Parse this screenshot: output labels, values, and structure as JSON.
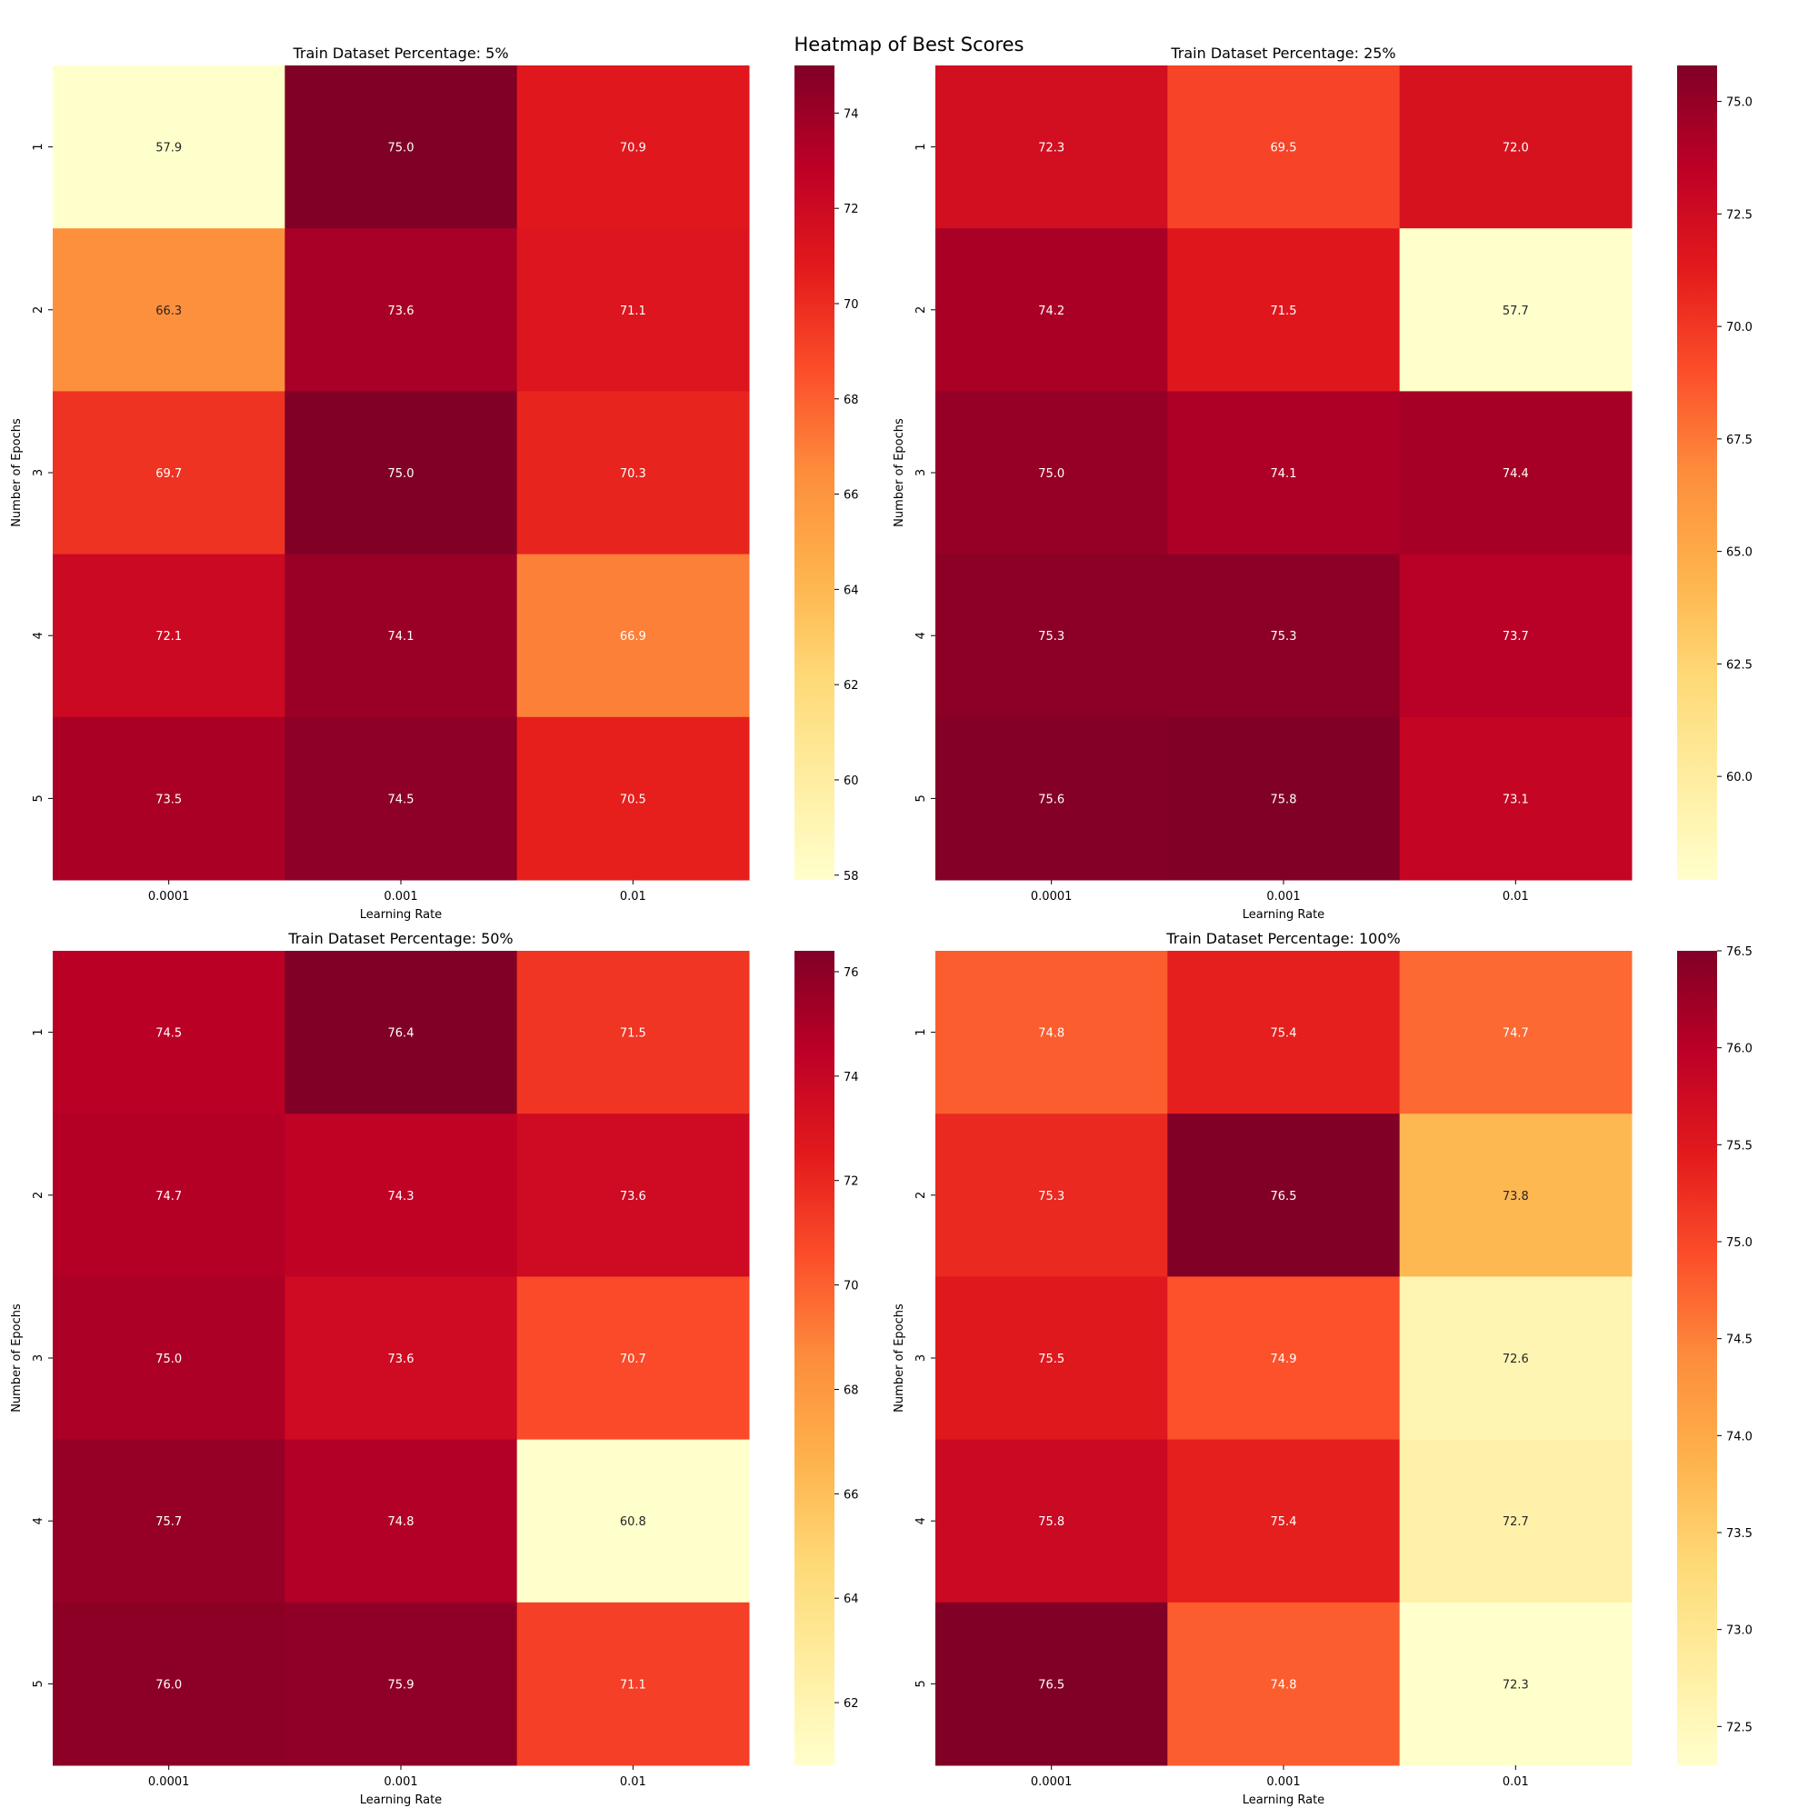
{
  "figure": {
    "title": "Heatmap of Best Scores"
  },
  "chart_data": [
    {
      "type": "heatmap",
      "title": "Train Dataset Percentage: 5%",
      "xlabel": "Learning Rate",
      "ylabel": "Number of Epochs",
      "x": [
        "0.0001",
        "0.001",
        "0.01"
      ],
      "y": [
        "1",
        "2",
        "3",
        "4",
        "5"
      ],
      "values": [
        [
          57.9,
          75.0,
          70.9
        ],
        [
          66.3,
          73.6,
          71.1
        ],
        [
          69.7,
          75.0,
          70.3
        ],
        [
          72.1,
          74.1,
          66.9
        ],
        [
          73.5,
          74.5,
          70.5
        ]
      ],
      "colorbar_ticks": [
        "58",
        "60",
        "62",
        "64",
        "66",
        "68",
        "70",
        "72",
        "74"
      ],
      "vmin": 57.9,
      "vmax": 75.0,
      "colormap": "YlOrRd"
    },
    {
      "type": "heatmap",
      "title": "Train Dataset Percentage: 25%",
      "xlabel": "Learning Rate",
      "ylabel": "Number of Epochs",
      "x": [
        "0.0001",
        "0.001",
        "0.01"
      ],
      "y": [
        "1",
        "2",
        "3",
        "4",
        "5"
      ],
      "values": [
        [
          72.3,
          69.5,
          72.0
        ],
        [
          74.2,
          71.5,
          57.7
        ],
        [
          75.0,
          74.1,
          74.4
        ],
        [
          75.3,
          75.3,
          73.7
        ],
        [
          75.6,
          75.8,
          73.1
        ]
      ],
      "colorbar_ticks": [
        "60.0",
        "62.5",
        "65.0",
        "67.5",
        "70.0",
        "72.5",
        "75.0"
      ],
      "vmin": 57.7,
      "vmax": 75.8,
      "colormap": "YlOrRd"
    },
    {
      "type": "heatmap",
      "title": "Train Dataset Percentage: 50%",
      "xlabel": "Learning Rate",
      "ylabel": "Number of Epochs",
      "x": [
        "0.0001",
        "0.001",
        "0.01"
      ],
      "y": [
        "1",
        "2",
        "3",
        "4",
        "5"
      ],
      "values": [
        [
          74.5,
          76.4,
          71.5
        ],
        [
          74.7,
          74.3,
          73.6
        ],
        [
          75.0,
          73.6,
          70.7
        ],
        [
          75.7,
          74.8,
          60.8
        ],
        [
          76.0,
          75.9,
          71.1
        ]
      ],
      "colorbar_ticks": [
        "62",
        "64",
        "66",
        "68",
        "70",
        "72",
        "74",
        "76"
      ],
      "vmin": 60.8,
      "vmax": 76.4,
      "colormap": "YlOrRd"
    },
    {
      "type": "heatmap",
      "title": "Train Dataset Percentage: 100%",
      "xlabel": "Learning Rate",
      "ylabel": "Number of Epochs",
      "x": [
        "0.0001",
        "0.001",
        "0.01"
      ],
      "y": [
        "1",
        "2",
        "3",
        "4",
        "5"
      ],
      "values": [
        [
          74.8,
          75.4,
          74.7
        ],
        [
          75.3,
          76.5,
          73.8
        ],
        [
          75.5,
          74.9,
          72.6
        ],
        [
          75.8,
          75.4,
          72.7
        ],
        [
          76.5,
          74.8,
          72.3
        ]
      ],
      "colorbar_ticks": [
        "72.5",
        "73.0",
        "73.5",
        "74.0",
        "74.5",
        "75.0",
        "75.5",
        "76.0",
        "76.5"
      ],
      "vmin": 72.3,
      "vmax": 76.5,
      "colormap": "YlOrRd"
    }
  ]
}
